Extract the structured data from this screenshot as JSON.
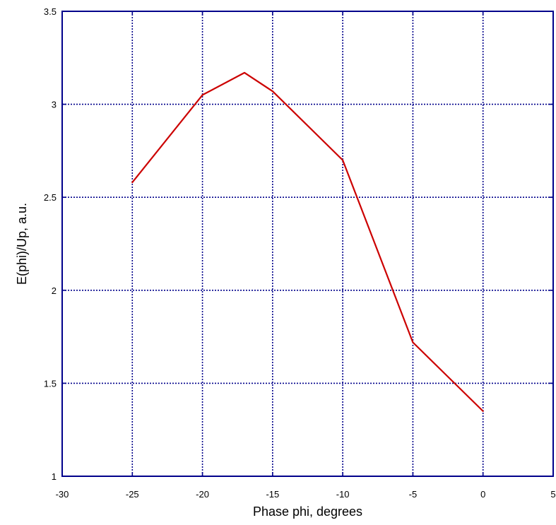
{
  "chart_data": {
    "type": "line",
    "title": "",
    "xlabel": "Phase phi, degrees",
    "ylabel": "E(phi)/Up, a.u.",
    "xlim": [
      -30,
      5
    ],
    "ylim": [
      1,
      3.5
    ],
    "xticks": [
      -30,
      -25,
      -20,
      -15,
      -10,
      -5,
      0,
      5
    ],
    "yticks": [
      1,
      1.5,
      2,
      2.5,
      3,
      3.5
    ],
    "xtick_labels": [
      "-30",
      "-25",
      "-20",
      "-15",
      "-10",
      "-5",
      "0",
      "5"
    ],
    "ytick_labels": [
      "1",
      "1.5",
      "2",
      "2.5",
      "3",
      "3.5"
    ],
    "grid": true,
    "series": [
      {
        "color": "#cc0000",
        "x": [
          -25,
          -20,
          -17,
          -15,
          -10,
          -5,
          0
        ],
        "y": [
          2.58,
          3.05,
          3.17,
          3.07,
          2.7,
          1.72,
          1.35
        ]
      }
    ]
  },
  "colors": {
    "frame": "#00008b",
    "grid": "#00008b",
    "line": "#cc0000"
  }
}
